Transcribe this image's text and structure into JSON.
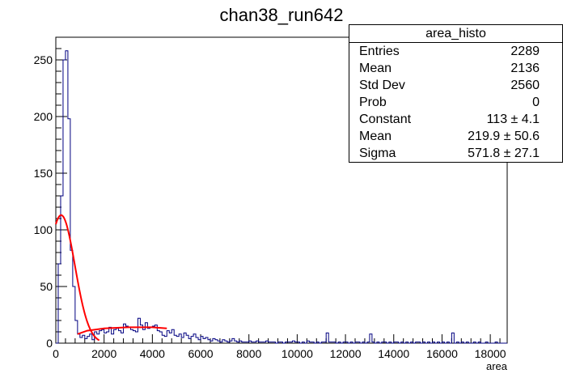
{
  "chart_data": {
    "type": "histogram",
    "title": "chan38_run642",
    "xlabel": "area",
    "ylabel": "",
    "xlim": [
      0,
      18700
    ],
    "ylim": [
      0,
      270
    ],
    "xticks": [
      0,
      2000,
      4000,
      6000,
      8000,
      10000,
      12000,
      14000,
      16000,
      18000
    ],
    "yticks": [
      0,
      50,
      100,
      150,
      200,
      250
    ],
    "bin_width": 100,
    "bin_start": 0,
    "counts": [
      0,
      70,
      130,
      250,
      258,
      198,
      82,
      50,
      20,
      8,
      5,
      7,
      4,
      6,
      8,
      3,
      10,
      8,
      11,
      12,
      9,
      10,
      14,
      8,
      12,
      13,
      11,
      9,
      17,
      15,
      14,
      12,
      11,
      10,
      22,
      16,
      12,
      18,
      13,
      14,
      15,
      16,
      11,
      10,
      7,
      6,
      11,
      9,
      12,
      7,
      6,
      8,
      5,
      9,
      7,
      4,
      6,
      8,
      5,
      3,
      6,
      4,
      5,
      3,
      2,
      4,
      3,
      2,
      1,
      3,
      2,
      1,
      2,
      4,
      2,
      1,
      2,
      1,
      1,
      1,
      2,
      1,
      1,
      2,
      1,
      1,
      1,
      2,
      1,
      1,
      1,
      0,
      1,
      1,
      0,
      1,
      1,
      1,
      2,
      1,
      1,
      0,
      1,
      0,
      2,
      1,
      1,
      0,
      1,
      0,
      1,
      1,
      9,
      1,
      1,
      1,
      0,
      1,
      0,
      1,
      1,
      0,
      1,
      0,
      1,
      1,
      0,
      1,
      0,
      1,
      8,
      1,
      0,
      1,
      0,
      1,
      1,
      0,
      1,
      0,
      1,
      1,
      0,
      1,
      0,
      1,
      0,
      1,
      0,
      1,
      1,
      0,
      1,
      0,
      1,
      0,
      1,
      0,
      1,
      0,
      1,
      0,
      1,
      0,
      9,
      0,
      1,
      0,
      1,
      0,
      1,
      0,
      0,
      1,
      0,
      1,
      0,
      0,
      1,
      0,
      0,
      0,
      1,
      0,
      0,
      0,
      0
    ],
    "fits": [
      {
        "type": "gaussian",
        "constant": 113,
        "mean": 219.9,
        "sigma": 571.8,
        "x_range": [
          0,
          1800
        ]
      },
      {
        "type": "polynomial",
        "points": [
          [
            900,
            8
          ],
          [
            1300,
            11
          ],
          [
            2000,
            13
          ],
          [
            3000,
            14
          ],
          [
            4000,
            14
          ],
          [
            4600,
            13
          ]
        ]
      }
    ],
    "colors": {
      "histogram": "#000080",
      "fit": "#ff0000",
      "axes": "#000000"
    }
  },
  "stats": {
    "title": "area_histo",
    "rows": [
      {
        "label": "Entries",
        "value": "2289"
      },
      {
        "label": "Mean",
        "value": "2136"
      },
      {
        "label": "Std Dev",
        "value": "2560"
      },
      {
        "label": "Prob",
        "value": "0"
      },
      {
        "label": "Constant",
        "value": "113 ± 4.1"
      },
      {
        "label": "Mean",
        "value": "219.9 ± 50.6"
      },
      {
        "label": "Sigma",
        "value": "571.8 ± 27.1"
      }
    ]
  }
}
